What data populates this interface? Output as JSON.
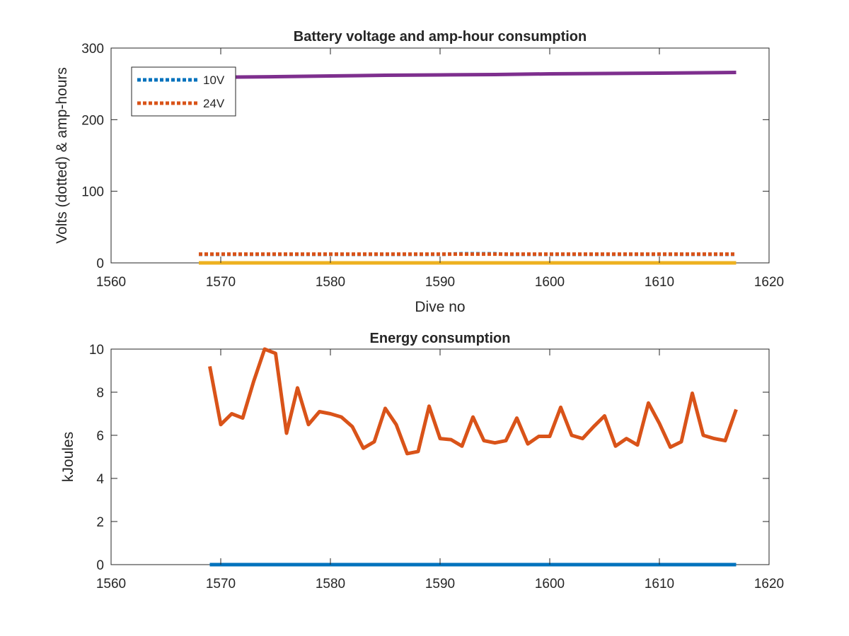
{
  "chart_data": [
    {
      "type": "line",
      "title": "Battery voltage and amp-hour consumption",
      "xlabel": "Dive no",
      "ylabel": "Volts (dotted) & amp-hours",
      "xlim": [
        1560,
        1620
      ],
      "ylim": [
        0,
        300
      ],
      "xticks": [
        "1560",
        "1570",
        "1580",
        "1590",
        "1600",
        "1610",
        "1620"
      ],
      "yticks": [
        "0",
        "100",
        "200",
        "300"
      ],
      "grid": false,
      "legend": {
        "position": "top-left",
        "entries": [
          "10V",
          "24V"
        ]
      },
      "series": [
        {
          "name": "10V",
          "style": "dotted",
          "color": "#0072BD",
          "points": [
            [
              1568,
              11.9
            ],
            [
              1590,
              11.9
            ],
            [
              1592,
              12.7
            ],
            [
              1595,
              12.7
            ],
            [
              1596,
              11.9
            ],
            [
              1617,
              11.9
            ]
          ]
        },
        {
          "name": "24V",
          "style": "dotted",
          "color": "#D95319",
          "points": [
            [
              1568,
              12.2
            ],
            [
              1617,
              12.2
            ]
          ]
        },
        {
          "style": "solid",
          "color": "#EDB120",
          "points": [
            [
              1568,
              0
            ],
            [
              1617,
              0
            ]
          ]
        },
        {
          "style": "solid",
          "color": "#7E2F8E",
          "points": [
            [
              1568,
              259
            ],
            [
              1575,
              260
            ],
            [
              1580,
              261
            ],
            [
              1585,
              262
            ],
            [
              1590,
              262.5
            ],
            [
              1595,
              263
            ],
            [
              1600,
              264
            ],
            [
              1605,
              264.5
            ],
            [
              1610,
              265
            ],
            [
              1617,
              266
            ]
          ]
        }
      ]
    },
    {
      "type": "line",
      "title": "Energy consumption",
      "xlabel": "",
      "ylabel": "kJoules",
      "xlim": [
        1560,
        1620
      ],
      "ylim": [
        0,
        10
      ],
      "xticks": [
        "1560",
        "1570",
        "1580",
        "1590",
        "1600",
        "1610",
        "1620"
      ],
      "yticks": [
        "0",
        "2",
        "4",
        "6",
        "8",
        "10"
      ],
      "grid": false,
      "series": [
        {
          "style": "solid",
          "color": "#D95319",
          "x": [
            1569,
            1570,
            1571,
            1572,
            1573,
            1574,
            1575,
            1576,
            1577,
            1578,
            1579,
            1580,
            1581,
            1582,
            1583,
            1584,
            1585,
            1586,
            1587,
            1588,
            1589,
            1590,
            1591,
            1592,
            1593,
            1594,
            1595,
            1596,
            1597,
            1598,
            1599,
            1600,
            1601,
            1602,
            1603,
            1604,
            1605,
            1606,
            1607,
            1608,
            1609,
            1610,
            1611,
            1612,
            1613,
            1614,
            1615,
            1616,
            1617
          ],
          "y": [
            9.2,
            6.5,
            7.0,
            6.8,
            8.5,
            10.0,
            9.8,
            6.1,
            8.2,
            6.5,
            7.1,
            7.0,
            6.85,
            6.4,
            5.4,
            5.7,
            7.25,
            6.5,
            5.15,
            5.25,
            7.35,
            5.85,
            5.8,
            5.5,
            6.85,
            5.75,
            5.65,
            5.75,
            6.8,
            5.6,
            5.95,
            5.95,
            7.3,
            6.0,
            5.85,
            6.4,
            6.9,
            5.5,
            5.85,
            5.55,
            7.5,
            6.55,
            5.45,
            5.7,
            7.95,
            6.0,
            5.85,
            5.75,
            7.2
          ]
        },
        {
          "style": "solid",
          "color": "#0072BD",
          "x": [
            1569,
            1617
          ],
          "y": [
            0,
            0
          ]
        }
      ]
    }
  ]
}
